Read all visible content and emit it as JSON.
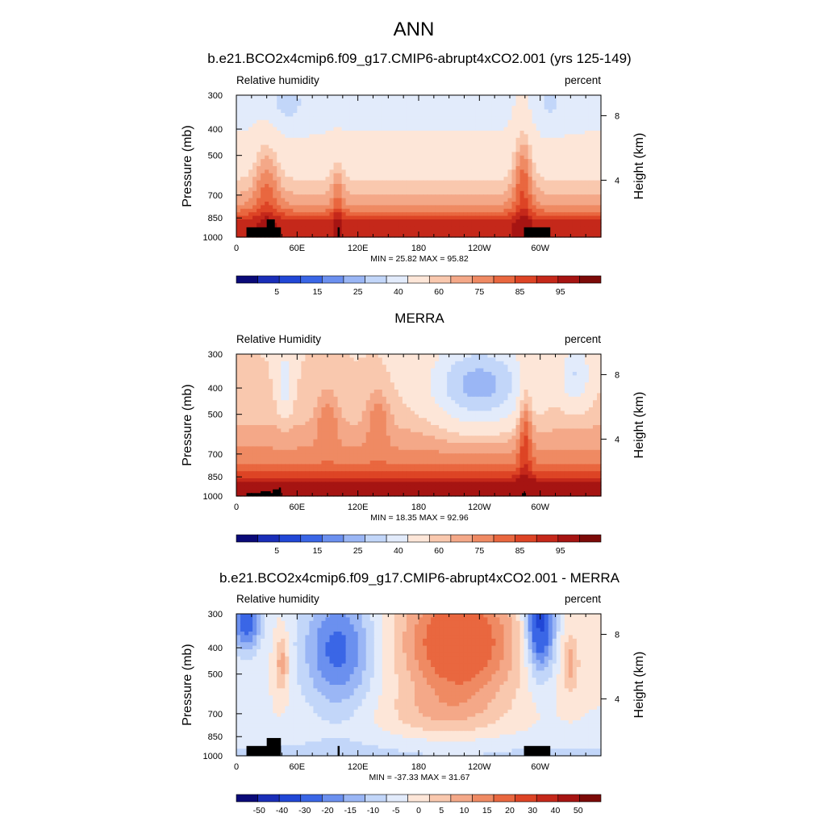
{
  "page_title": "ANN",
  "colors": {
    "land": "#000000",
    "rh_scale": [
      "#0a0a78",
      "#1a2eb8",
      "#2147d6",
      "#3a66e6",
      "#6b90ef",
      "#9ab6f5",
      "#c2d6f9",
      "#e2ebfb",
      "#fde6d8",
      "#f9c8ae",
      "#f4a888",
      "#ef8a63",
      "#e9673f",
      "#dd4425",
      "#c5281a",
      "#a61412",
      "#7c0a08"
    ],
    "diff_scale": [
      "#0a0a78",
      "#1a2eb8",
      "#2147d6",
      "#3a66e6",
      "#6b90ef",
      "#9ab6f5",
      "#c2d6f9",
      "#e2ebfb",
      "#fde6d8",
      "#f9c8ae",
      "#f4a888",
      "#ef8a63",
      "#e9673f",
      "#dd4425",
      "#c5281a",
      "#a61412",
      "#7c0a08"
    ]
  },
  "chart_data": [
    {
      "type": "heatmap",
      "title": "b.e21.BCO2x4cmip6.f09_g17.CMIP6-abrupt4xCO2.001 (yrs 125-149)",
      "left_label": "Relative humidity",
      "right_label": "percent",
      "ylabel": "Pressure (mb)",
      "y2label": "Height (km)",
      "x_ticks": [
        "0",
        "60E",
        "120E",
        "180",
        "120W",
        "60W"
      ],
      "y_ticks": [
        "300",
        "400",
        "500",
        "700",
        "850",
        "1000"
      ],
      "y2_ticks": [
        "8",
        "4"
      ],
      "stats": "MIN =  25.82  MAX =  95.82",
      "colorbar_labels": [
        "5",
        "15",
        "25",
        "40",
        "60",
        "75",
        "85",
        "95"
      ],
      "field": "model_rh"
    },
    {
      "type": "heatmap",
      "title": "MERRA",
      "left_label": "Relative Humidity",
      "right_label": "percent",
      "ylabel": "Pressure (mb)",
      "y2label": "Height (km)",
      "x_ticks": [
        "0",
        "60E",
        "120E",
        "180",
        "120W",
        "60W"
      ],
      "y_ticks": [
        "300",
        "400",
        "500",
        "700",
        "850",
        "1000"
      ],
      "y2_ticks": [
        "8",
        "4"
      ],
      "stats": "MIN =  18.35  MAX =  92.96",
      "colorbar_labels": [
        "5",
        "15",
        "25",
        "40",
        "60",
        "75",
        "85",
        "95"
      ],
      "field": "obs_rh"
    },
    {
      "type": "heatmap",
      "title": "b.e21.BCO2x4cmip6.f09_g17.CMIP6-abrupt4xCO2.001 - MERRA",
      "left_label": "Relative humidity",
      "right_label": "percent",
      "ylabel": "Pressure (mb)",
      "y2label": "Height (km)",
      "x_ticks": [
        "0",
        "60E",
        "120E",
        "180",
        "120W",
        "60W"
      ],
      "y_ticks": [
        "300",
        "400",
        "500",
        "700",
        "850",
        "1000"
      ],
      "y2_ticks": [
        "8",
        "4"
      ],
      "stats": "MIN = -37.33  MAX =  31.67",
      "colorbar_labels": [
        "-50",
        "-40",
        "-30",
        "-20",
        "-15",
        "-10",
        "-5",
        "0",
        "5",
        "10",
        "15",
        "20",
        "30",
        "40",
        "50"
      ],
      "field": "diff_rh"
    }
  ]
}
